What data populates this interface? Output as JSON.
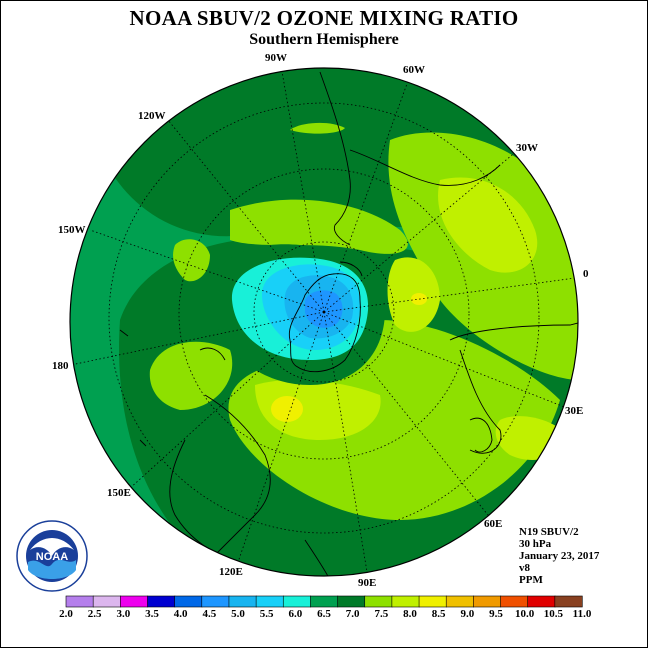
{
  "title": "NOAA SBUV/2 OZONE MIXING RATIO",
  "subtitle": "Southern Hemisphere",
  "longitude_labels": [
    {
      "text": "90W",
      "pos": "top"
    },
    {
      "text": "60W",
      "pos": "top-right-1"
    },
    {
      "text": "120W",
      "pos": "top-left-1"
    },
    {
      "text": "30W",
      "pos": "top-right-2"
    },
    {
      "text": "150W",
      "pos": "left-upper"
    },
    {
      "text": "0",
      "pos": "right"
    },
    {
      "text": "180",
      "pos": "left"
    },
    {
      "text": "30E",
      "pos": "right-lower"
    },
    {
      "text": "150E",
      "pos": "bottom-left-1"
    },
    {
      "text": "60E",
      "pos": "bottom-right-1"
    },
    {
      "text": "120E",
      "pos": "bottom-left-2"
    },
    {
      "text": "90E",
      "pos": "bottom"
    }
  ],
  "info": {
    "satellite": "N19 SBUV/2",
    "level": "30 hPa",
    "date": "January 23, 2017",
    "version": "v8",
    "units": "PPM"
  },
  "colorbar": {
    "ticks": [
      "2.0",
      "2.5",
      "3.0",
      "3.5",
      "4.0",
      "4.5",
      "5.0",
      "5.5",
      "6.0",
      "6.5",
      "7.0",
      "7.5",
      "8.0",
      "8.5",
      "9.0",
      "9.5",
      "10.0",
      "10.5",
      "11.0"
    ],
    "colors": [
      "#b57fec",
      "#dcb6ee",
      "#ee00ee",
      "#0000d0",
      "#0068e8",
      "#1e96ff",
      "#18b4f0",
      "#18d0f8",
      "#18f0d8",
      "#00a050",
      "#007a28",
      "#8ee000",
      "#c0f000",
      "#f0f000",
      "#f0c000",
      "#f09a00",
      "#f05000",
      "#e00000",
      "#884020"
    ]
  },
  "logo": {
    "text": "NOAA",
    "ring_text": "NATIONAL OCEANIC AND ATMOSPHERIC ADMINISTRATION · U.S. DEPARTMENT OF COMMERCE"
  },
  "colors": {
    "mid_green": "#00a050",
    "dark_green": "#007a28",
    "light_green": "#8ee000",
    "yellow_green": "#c0f000",
    "yellow": "#f0f000",
    "teal": "#18f0d8",
    "cyan": "#18d0f8",
    "light_blue": "#18b4f0",
    "blue": "#1e96ff"
  }
}
